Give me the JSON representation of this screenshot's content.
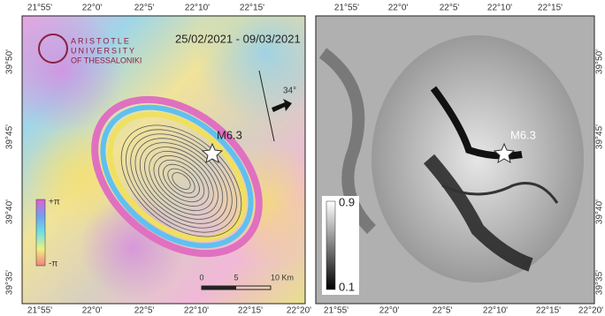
{
  "left_panel": {
    "top_labels": [
      "21°55'",
      "22°0'",
      "22°5'",
      "22°10'",
      "22°15'"
    ],
    "bottom_labels": [
      "21°55'",
      "22°0'",
      "22°5'",
      "22°10'",
      "22°15'",
      "22°20'"
    ],
    "side_labels": [
      "39°50'",
      "39°45'",
      "39°40'",
      "39°35'"
    ],
    "logo": {
      "line1": "ARISTOTLE",
      "line2": "UNIVERSITY",
      "line3": "OF THESSALONIKI"
    },
    "date_range": "25/02/2021 - 09/03/2021",
    "epicenter": "M6.3",
    "look_angle": "34°",
    "legend": {
      "max": "+π",
      "min": "-π"
    },
    "scale": {
      "start": "0",
      "mid": "5",
      "end": "10 Km"
    }
  },
  "right_panel": {
    "top_labels": [
      "21°55'",
      "22°0'",
      "22°5'",
      "22°10'",
      "22°15'"
    ],
    "bottom_labels": [
      "21°55'",
      "22°0'",
      "22°5'",
      "22°10'",
      "22°15'",
      "22°20'"
    ],
    "side_labels": [
      "39°50'",
      "39°45'",
      "39°40'",
      "39°35'"
    ],
    "epicenter": "M6.3",
    "legend": {
      "max": "0.9",
      "min": "0.1"
    }
  }
}
